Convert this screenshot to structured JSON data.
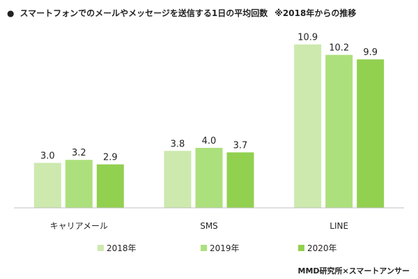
{
  "title": {
    "bullet": "●",
    "text": "スマートフォンでのメールやメッセージを送信する1日の平均回数",
    "note": "※2018年からの推移"
  },
  "source": "MMD研究所×スマートアンサー",
  "chart_data": {
    "type": "bar",
    "title": "スマートフォンでのメールやメッセージを送信する1日の平均回数　※2018年からの推移",
    "categories": [
      "キャリアメール",
      "SMS",
      "LINE"
    ],
    "series": [
      {
        "name": "2018年",
        "values": [
          3.0,
          3.8,
          10.9
        ],
        "color": "#cde9ae"
      },
      {
        "name": "2019年",
        "values": [
          3.2,
          4.0,
          10.2
        ],
        "color": "#ace07c"
      },
      {
        "name": "2020年",
        "values": [
          2.9,
          3.7,
          9.9
        ],
        "color": "#92d050"
      }
    ],
    "ylim": [
      0,
      12
    ],
    "grid": false,
    "legend_position": "bottom"
  }
}
